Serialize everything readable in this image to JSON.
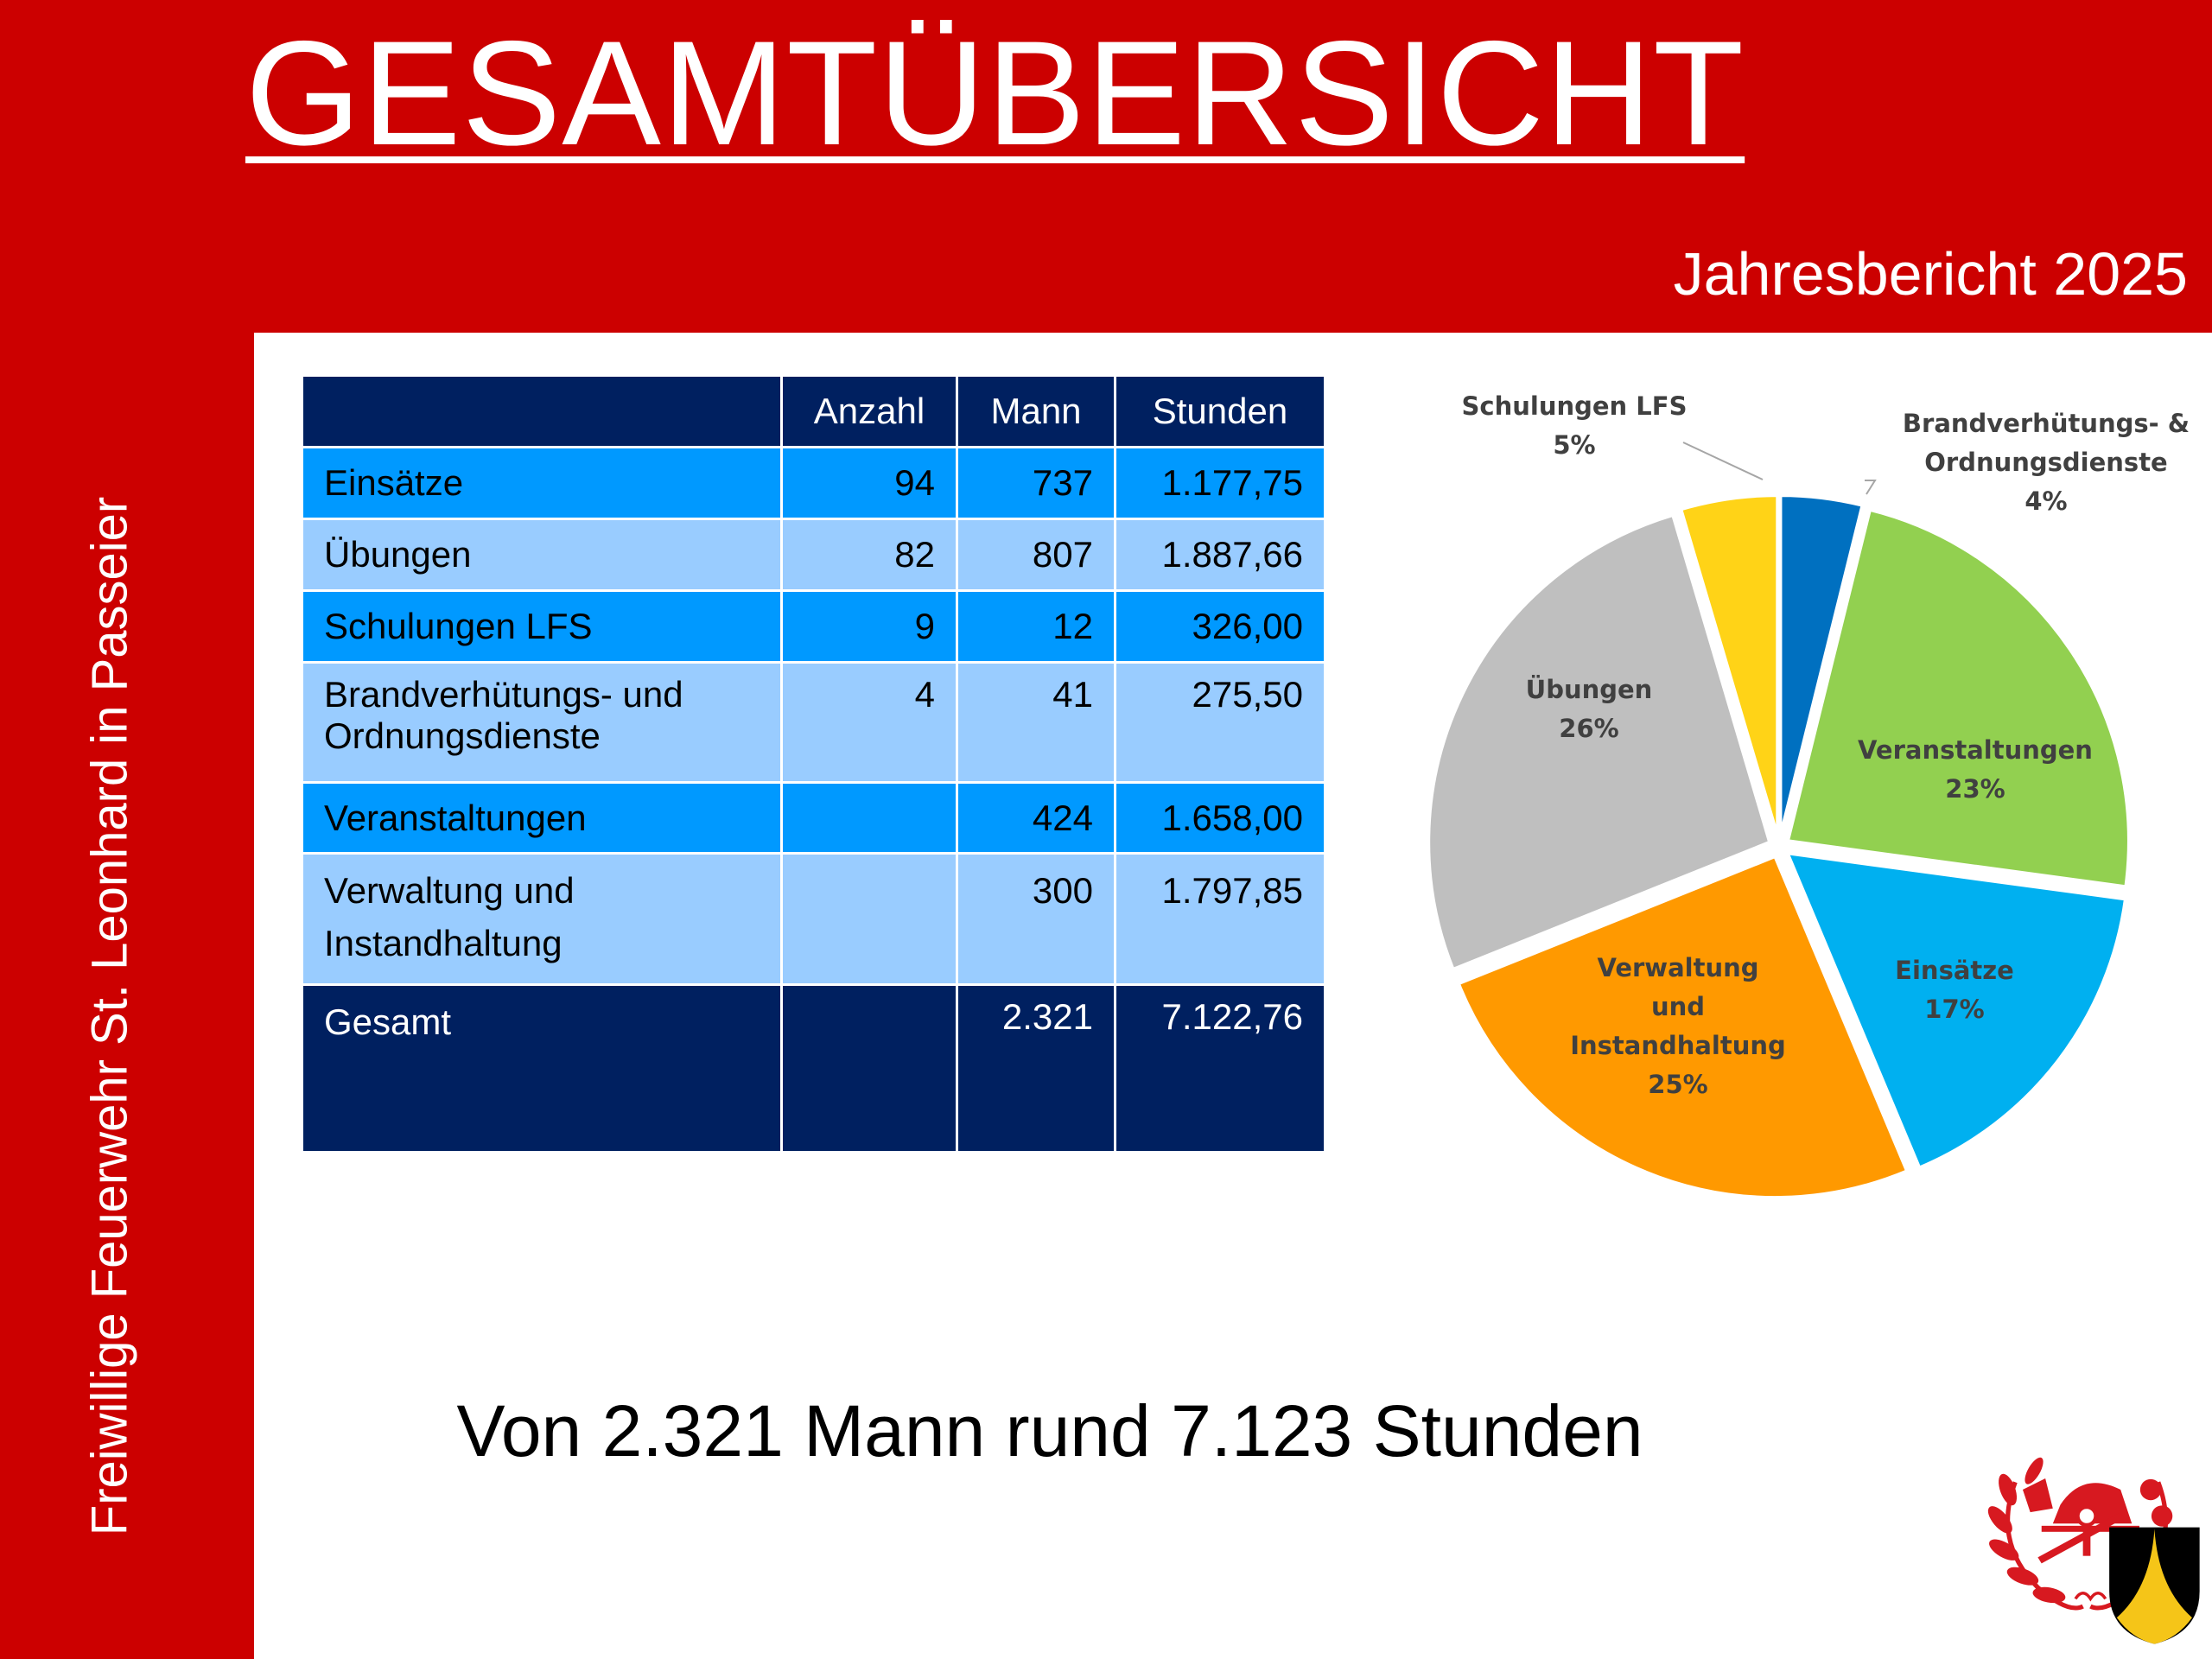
{
  "header": {
    "title": "GESAMTÜBERSICHT",
    "subtitle": "Jahresbericht 2025"
  },
  "sidebar": {
    "text": "Freiwillige Feuerwehr St. Leonhard in Passeier"
  },
  "table": {
    "columns": [
      "",
      "Anzahl",
      "Mann",
      "Stunden"
    ],
    "rows": [
      {
        "label": "Einsätze",
        "anzahl": "94",
        "mann": "737",
        "stunden": "1.177,75"
      },
      {
        "label": "Übungen",
        "anzahl": "82",
        "mann": "807",
        "stunden": "1.887,66"
      },
      {
        "label": "Schulungen LFS",
        "anzahl": "9",
        "mann": "12",
        "stunden": "326,00"
      },
      {
        "label": "Brandverhütungs- und Ordnungsdienste",
        "anzahl": "4",
        "mann": "41",
        "stunden": "275,50"
      },
      {
        "label": "Veranstaltungen",
        "anzahl": "",
        "mann": "424",
        "stunden": "1.658,00"
      },
      {
        "label": "Verwaltung und Instandhaltung",
        "anzahl": "",
        "mann": "300",
        "stunden": "1.797,85"
      },
      {
        "label": "Gesamt",
        "anzahl": "",
        "mann": "2.321",
        "stunden": "7.122,76"
      }
    ]
  },
  "chart_data": {
    "type": "pie",
    "title": "",
    "slices": [
      {
        "label": "Brandverhütungs- & Ordnungsdienste",
        "value": 275.5,
        "percent": "4%",
        "color": "#0070c0"
      },
      {
        "label": "Veranstaltungen",
        "value": 1658.0,
        "percent": "23%",
        "color": "#92d050"
      },
      {
        "label": "Einsätze",
        "value": 1177.75,
        "percent": "17%",
        "color": "#00b0f0"
      },
      {
        "label": "Verwaltung und Instandhaltung",
        "value": 1797.85,
        "percent": "25%",
        "color": "#ff9900"
      },
      {
        "label": "Übungen",
        "value": 1887.66,
        "percent": "26%",
        "color": "#bfbfbf"
      },
      {
        "label": "Schulungen LFS",
        "value": 326.0,
        "percent": "5%",
        "color": "#ffd317"
      }
    ]
  },
  "summary": "Von 2.321 Mann rund 7.123 Stunden",
  "colors": {
    "background": "#cc0000",
    "table_header": "#002060",
    "row_dark": "#0099ff",
    "row_light": "#99ccff"
  }
}
